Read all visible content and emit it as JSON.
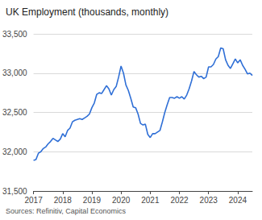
{
  "chart_data": {
    "type": "line",
    "title": "UK Employment (thousands, monthly)",
    "source": "Sources: Refinitiv, Capital Economics",
    "categories": [
      "2017",
      null,
      null,
      null,
      null,
      null,
      null,
      null,
      null,
      null,
      null,
      null,
      "2018",
      null,
      null,
      null,
      null,
      null,
      null,
      null,
      null,
      null,
      null,
      null,
      "2019",
      null,
      null,
      null,
      null,
      null,
      null,
      null,
      null,
      null,
      null,
      null,
      "2020",
      null,
      null,
      null,
      null,
      null,
      null,
      null,
      null,
      null,
      null,
      null,
      "2021",
      null,
      null,
      null,
      null,
      null,
      null,
      null,
      null,
      null,
      null,
      null,
      "2022",
      null,
      null,
      null,
      null,
      null,
      null,
      null,
      null,
      null,
      null,
      null,
      "2023",
      null,
      null,
      null,
      null,
      null,
      null,
      null,
      null,
      null,
      null,
      null,
      "2024",
      null,
      null,
      null,
      null,
      null,
      null
    ],
    "values": [
      31890,
      31900,
      31980,
      32000,
      32040,
      32060,
      32100,
      32130,
      32170,
      32150,
      32130,
      32160,
      32230,
      32190,
      32270,
      32300,
      32380,
      32400,
      32410,
      32420,
      32410,
      32430,
      32450,
      32480,
      32560,
      32620,
      32730,
      32750,
      32740,
      32790,
      32840,
      32800,
      32720,
      32790,
      32830,
      32950,
      33090,
      33000,
      32850,
      32780,
      32680,
      32570,
      32560,
      32480,
      32360,
      32340,
      32350,
      32220,
      32180,
      32230,
      32230,
      32250,
      32270,
      32380,
      32500,
      32600,
      32690,
      32690,
      32680,
      32700,
      32680,
      32700,
      32670,
      32720,
      32800,
      32900,
      33020,
      32980,
      32950,
      32960,
      32930,
      32950,
      33080,
      33080,
      33110,
      33180,
      33210,
      33320,
      33310,
      33170,
      33100,
      33060,
      33120,
      33180,
      33130,
      33170,
      33100,
      33050,
      32990,
      33000,
      32970
    ],
    "color": "#2f6fd6",
    "ylim": [
      31500,
      33500
    ],
    "yticks": [
      {
        "value": 31500,
        "label": "31,500"
      },
      {
        "value": 32000,
        "label": "32,000"
      },
      {
        "value": 32500,
        "label": "32,500"
      },
      {
        "value": 33000,
        "label": "33,000"
      },
      {
        "value": 33500,
        "label": "33,500"
      }
    ],
    "grid": true
  }
}
